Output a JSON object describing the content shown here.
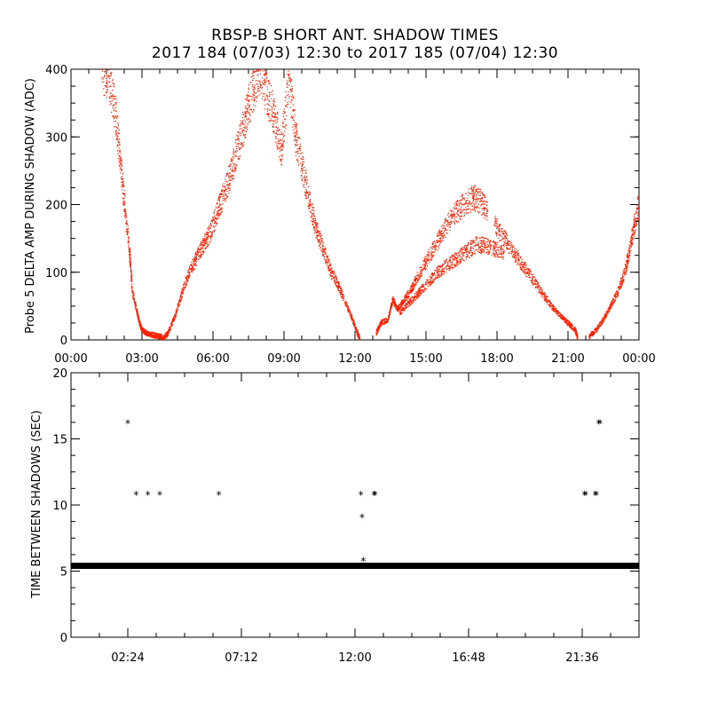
{
  "title": {
    "line1": "RBSP-B SHORT ANT. SHADOW TIMES",
    "line2": "2017 184 (07/03) 12:30 to 2017 185 (07/04) 12:30"
  },
  "colors": {
    "amp_points": "#ff2000",
    "interval_points": "#000000",
    "axes": "#000000"
  },
  "chart_data": [
    {
      "type": "scatter",
      "ylabel": "Probe 5 DELTA AMP DURING SHADOW (ADC)",
      "xlim_hours": [
        0,
        24
      ],
      "ylim": [
        0,
        400
      ],
      "xticks": [
        {
          "value": 0,
          "label": "00:00"
        },
        {
          "value": 3,
          "label": "03:00"
        },
        {
          "value": 6,
          "label": "06:00"
        },
        {
          "value": 9,
          "label": "09:00"
        },
        {
          "value": 12,
          "label": "12:00"
        },
        {
          "value": 15,
          "label": "15:00"
        },
        {
          "value": 18,
          "label": "18:00"
        },
        {
          "value": 21,
          "label": "21:00"
        },
        {
          "value": 24,
          "label": "00:00"
        }
      ],
      "yticks": [
        {
          "value": 0,
          "label": "0"
        },
        {
          "value": 100,
          "label": "100"
        },
        {
          "value": 200,
          "label": "200"
        },
        {
          "value": 300,
          "label": "300"
        },
        {
          "value": 400,
          "label": "400"
        }
      ],
      "series": [
        {
          "x_hours": [
            1.3,
            1.6,
            1.9,
            2.1,
            2.3,
            2.5,
            2.6,
            2.8,
            2.9,
            3.0,
            3.2,
            3.4,
            3.6,
            3.8,
            3.85
          ],
          "values": [
            400,
            390,
            330,
            260,
            190,
            120,
            70,
            40,
            25,
            15,
            10,
            8,
            6,
            5,
            3
          ]
        },
        {
          "x_hours": [
            3.9,
            4.1,
            4.4,
            4.7,
            5.0,
            5.3,
            5.6,
            5.9,
            6.2,
            6.5,
            6.8,
            7.1,
            7.4,
            7.7,
            8.0,
            8.3,
            8.6,
            8.9,
            9.2
          ],
          "values": [
            2,
            10,
            35,
            70,
            100,
            120,
            140,
            160,
            190,
            220,
            250,
            290,
            330,
            370,
            400,
            360,
            330,
            280,
            390
          ]
        },
        {
          "x_hours": [
            9.2,
            9.5,
            9.8,
            10.1,
            10.4,
            10.7,
            11.0,
            11.3,
            11.6,
            11.9,
            12.1,
            12.2
          ],
          "values": [
            390,
            300,
            250,
            200,
            160,
            130,
            100,
            80,
            55,
            30,
            10,
            2
          ]
        },
        {
          "x_hours": [
            12.9,
            13.1,
            13.4,
            13.6,
            13.8,
            14.0,
            14.3,
            14.6,
            15.0,
            15.4,
            15.8,
            16.2,
            16.6,
            17.0,
            17.3,
            17.6
          ],
          "values": [
            10,
            25,
            30,
            60,
            45,
            55,
            70,
            90,
            115,
            140,
            165,
            185,
            200,
            210,
            205,
            190
          ]
        },
        {
          "x_hours": [
            13.9,
            14.3,
            14.7,
            15.1,
            15.5,
            15.9,
            16.3,
            16.7,
            17.1,
            17.5,
            17.9,
            18.3
          ],
          "values": [
            40,
            55,
            70,
            85,
            100,
            110,
            120,
            130,
            140,
            140,
            135,
            130
          ]
        },
        {
          "x_hours": [
            17.9,
            18.3,
            18.7,
            19.1,
            19.5,
            19.9,
            20.3,
            20.7,
            21.0,
            21.3,
            21.4
          ],
          "values": [
            170,
            150,
            130,
            110,
            90,
            70,
            50,
            35,
            25,
            15,
            5
          ]
        },
        {
          "x_hours": [
            21.9,
            22.2,
            22.5,
            22.8,
            23.1,
            23.4,
            23.6,
            23.8,
            24.0
          ],
          "values": [
            5,
            15,
            30,
            50,
            70,
            100,
            130,
            170,
            200
          ]
        }
      ]
    },
    {
      "type": "scatter",
      "ylabel": "TIME BETWEEN SHADOWS (SEC)",
      "xlim_hours": [
        0,
        24
      ],
      "ylim": [
        0,
        20
      ],
      "xticks": [
        {
          "value": 2.4,
          "label": "02:24"
        },
        {
          "value": 7.2,
          "label": "07:12"
        },
        {
          "value": 12.0,
          "label": "12:00"
        },
        {
          "value": 16.8,
          "label": "16:48"
        },
        {
          "value": 21.6,
          "label": "21:36"
        }
      ],
      "yticks": [
        {
          "value": 0,
          "label": "0"
        },
        {
          "value": 5,
          "label": "5"
        },
        {
          "value": 10,
          "label": "10"
        },
        {
          "value": 15,
          "label": "15"
        },
        {
          "value": 20,
          "label": "20"
        }
      ],
      "baseline": {
        "value": 5.4,
        "x_start_hours": 0.0,
        "x_end_hours": 24.0
      },
      "series": [
        {
          "x_hours": [
            2.4,
            2.75,
            3.25,
            3.75,
            6.25,
            12.25,
            12.3,
            12.35,
            12.8,
            12.85,
            21.7,
            21.75,
            22.15,
            22.2,
            22.3,
            22.35
          ],
          "values": [
            16.2,
            10.8,
            10.8,
            10.8,
            10.8,
            10.8,
            9.1,
            5.8,
            10.8,
            10.8,
            10.8,
            10.8,
            10.8,
            10.8,
            16.2,
            16.2
          ]
        }
      ]
    }
  ]
}
